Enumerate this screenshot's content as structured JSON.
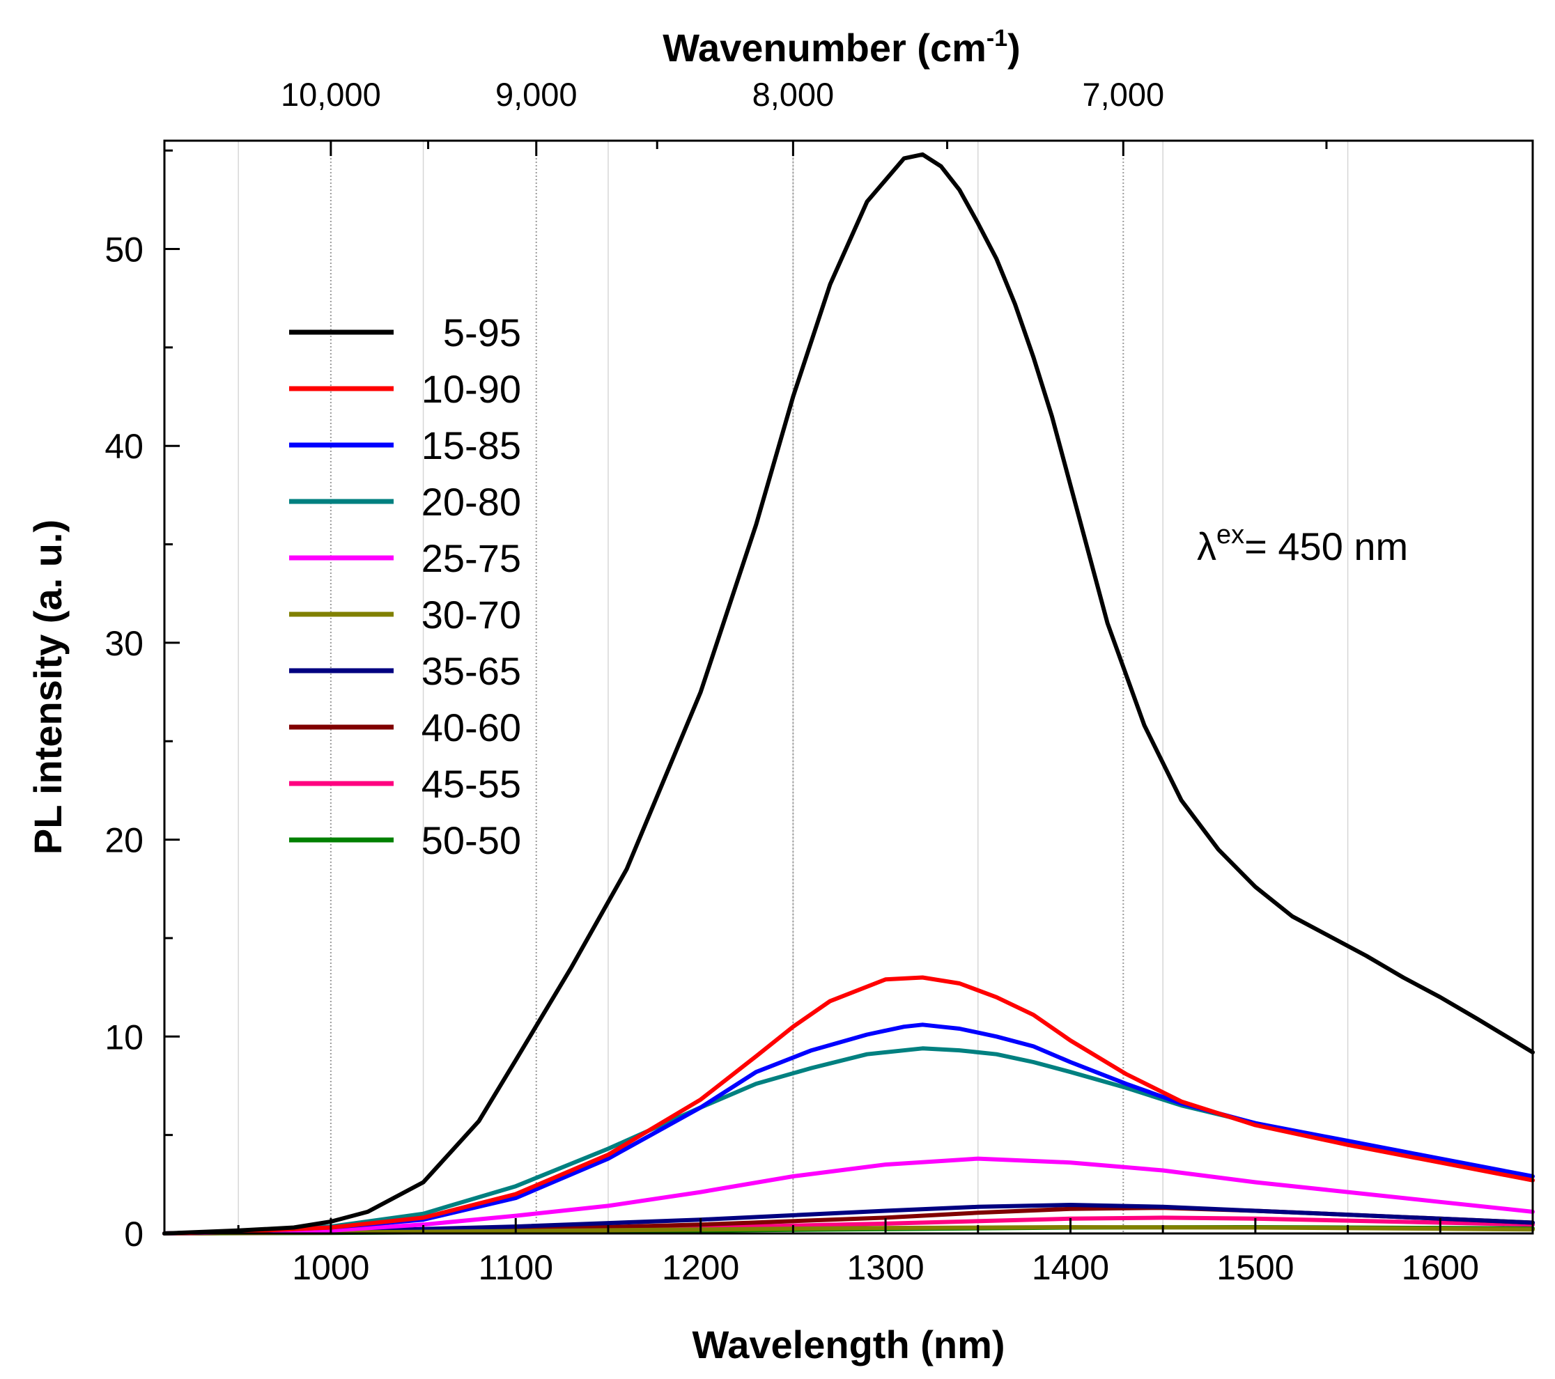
{
  "chart_data": {
    "type": "line",
    "xlabel": "Wavelength (nm)",
    "ylabel": "PL intensity (a. u.)",
    "top_xlabel": {
      "main": "Wavenumber (cm",
      "sup": "-1",
      "close": ")"
    },
    "xlim": [
      910,
      1650
    ],
    "ylim": [
      0,
      55.5
    ],
    "x_ticks": [
      {
        "value": 1000,
        "label": "1000"
      },
      {
        "value": 1100,
        "label": "1100"
      },
      {
        "value": 1200,
        "label": "1200"
      },
      {
        "value": 1300,
        "label": "1300"
      },
      {
        "value": 1400,
        "label": "1400"
      },
      {
        "value": 1500,
        "label": "1500"
      },
      {
        "value": 1600,
        "label": "1600"
      }
    ],
    "y_ticks": [
      {
        "value": 0,
        "label": "0"
      },
      {
        "value": 10,
        "label": "10"
      },
      {
        "value": 20,
        "label": "20"
      },
      {
        "value": 30,
        "label": "30"
      },
      {
        "value": 40,
        "label": "40"
      },
      {
        "value": 50,
        "label": "50"
      }
    ],
    "top_ticks": [
      {
        "wavenumber": 10000,
        "label": "10,000"
      },
      {
        "wavenumber": 9000,
        "label": "9,000"
      },
      {
        "wavenumber": 8000,
        "label": "8,000"
      },
      {
        "wavenumber": 7000,
        "label": "7,000"
      }
    ],
    "grid": true,
    "legend_position": "top-left",
    "annotation": {
      "symbol": "λ",
      "sup": "ex",
      "text": "= 450 nm"
    },
    "series": [
      {
        "name": "5-95",
        "color": "#000000",
        "x": [
          910,
          950,
          980,
          1000,
          1020,
          1050,
          1080,
          1100,
          1130,
          1160,
          1200,
          1230,
          1250,
          1270,
          1290,
          1310,
          1320,
          1330,
          1340,
          1350,
          1360,
          1370,
          1380,
          1390,
          1400,
          1420,
          1440,
          1460,
          1480,
          1500,
          1520,
          1540,
          1560,
          1580,
          1600,
          1620,
          1650
        ],
        "y": [
          0,
          0.15,
          0.3,
          0.6,
          1.1,
          2.6,
          5.7,
          8.8,
          13.5,
          18.5,
          27.5,
          36,
          42.5,
          48.2,
          52.4,
          54.6,
          54.8,
          54.2,
          53,
          51.3,
          49.5,
          47.2,
          44.5,
          41.5,
          38,
          31,
          25.8,
          22,
          19.5,
          17.6,
          16.1,
          15.1,
          14.1,
          13,
          12,
          10.9,
          9.2
        ]
      },
      {
        "name": "10-90",
        "color": "#ff0000",
        "x": [
          910,
          950,
          1000,
          1050,
          1100,
          1150,
          1200,
          1230,
          1250,
          1270,
          1300,
          1320,
          1340,
          1360,
          1380,
          1400,
          1430,
          1460,
          1500,
          1550,
          1600,
          1650
        ],
        "y": [
          0,
          0.1,
          0.3,
          0.8,
          2,
          4,
          6.8,
          9,
          10.5,
          11.8,
          12.9,
          13,
          12.7,
          12,
          11.1,
          9.8,
          8.1,
          6.7,
          5.5,
          4.5,
          3.6,
          2.7
        ]
      },
      {
        "name": "15-85",
        "color": "#0000ff",
        "x": [
          910,
          950,
          1000,
          1050,
          1100,
          1150,
          1200,
          1230,
          1260,
          1290,
          1310,
          1320,
          1330,
          1340,
          1360,
          1380,
          1400,
          1430,
          1460,
          1500,
          1550,
          1600,
          1650
        ],
        "y": [
          0,
          0.1,
          0.3,
          0.7,
          1.8,
          3.8,
          6.4,
          8.2,
          9.3,
          10.1,
          10.5,
          10.6,
          10.5,
          10.4,
          10,
          9.5,
          8.7,
          7.6,
          6.6,
          5.6,
          4.7,
          3.8,
          2.9
        ]
      },
      {
        "name": "20-80",
        "color": "#008080",
        "x": [
          910,
          950,
          1000,
          1050,
          1100,
          1150,
          1200,
          1230,
          1260,
          1290,
          1320,
          1340,
          1360,
          1380,
          1400,
          1430,
          1460,
          1500,
          1550,
          1600,
          1650
        ],
        "y": [
          0,
          0.1,
          0.35,
          1,
          2.4,
          4.3,
          6.4,
          7.6,
          8.4,
          9.1,
          9.4,
          9.3,
          9.1,
          8.7,
          8.2,
          7.4,
          6.5,
          5.6,
          4.6,
          3.7,
          2.7
        ]
      },
      {
        "name": "25-75",
        "color": "#ff00ff",
        "x": [
          910,
          1000,
          1050,
          1100,
          1150,
          1200,
          1250,
          1300,
          1350,
          1400,
          1450,
          1500,
          1550,
          1600,
          1650
        ],
        "y": [
          0,
          0.15,
          0.45,
          0.9,
          1.4,
          2.1,
          2.9,
          3.5,
          3.8,
          3.6,
          3.2,
          2.6,
          2.1,
          1.6,
          1.1
        ]
      },
      {
        "name": "30-70",
        "color": "#808000",
        "x": [
          910,
          1000,
          1100,
          1200,
          1300,
          1400,
          1500,
          1600,
          1650
        ],
        "y": [
          0,
          0.05,
          0.12,
          0.2,
          0.28,
          0.32,
          0.3,
          0.24,
          0.2
        ]
      },
      {
        "name": "35-65",
        "color": "#000080",
        "x": [
          910,
          1000,
          1100,
          1200,
          1300,
          1350,
          1400,
          1450,
          1500,
          1550,
          1600,
          1650
        ],
        "y": [
          0,
          0.1,
          0.35,
          0.7,
          1.15,
          1.35,
          1.45,
          1.35,
          1.15,
          0.95,
          0.75,
          0.55
        ]
      },
      {
        "name": "40-60",
        "color": "#800000",
        "x": [
          910,
          1000,
          1100,
          1200,
          1300,
          1350,
          1400,
          1450,
          1500,
          1550,
          1600,
          1650
        ],
        "y": [
          0,
          0.05,
          0.2,
          0.45,
          0.8,
          1.05,
          1.25,
          1.3,
          1.15,
          0.95,
          0.75,
          0.55
        ]
      },
      {
        "name": "45-55",
        "color": "#ff0080",
        "x": [
          910,
          1000,
          1100,
          1200,
          1300,
          1400,
          1450,
          1500,
          1550,
          1600,
          1650
        ],
        "y": [
          0,
          0.05,
          0.15,
          0.3,
          0.5,
          0.75,
          0.8,
          0.75,
          0.65,
          0.55,
          0.45
        ]
      },
      {
        "name": "50-50",
        "color": "#008000",
        "x": [
          910,
          1000,
          1100,
          1200,
          1300,
          1400,
          1500,
          1600,
          1650
        ],
        "y": [
          0,
          0.03,
          0.08,
          0.15,
          0.22,
          0.3,
          0.32,
          0.28,
          0.25
        ]
      }
    ]
  }
}
